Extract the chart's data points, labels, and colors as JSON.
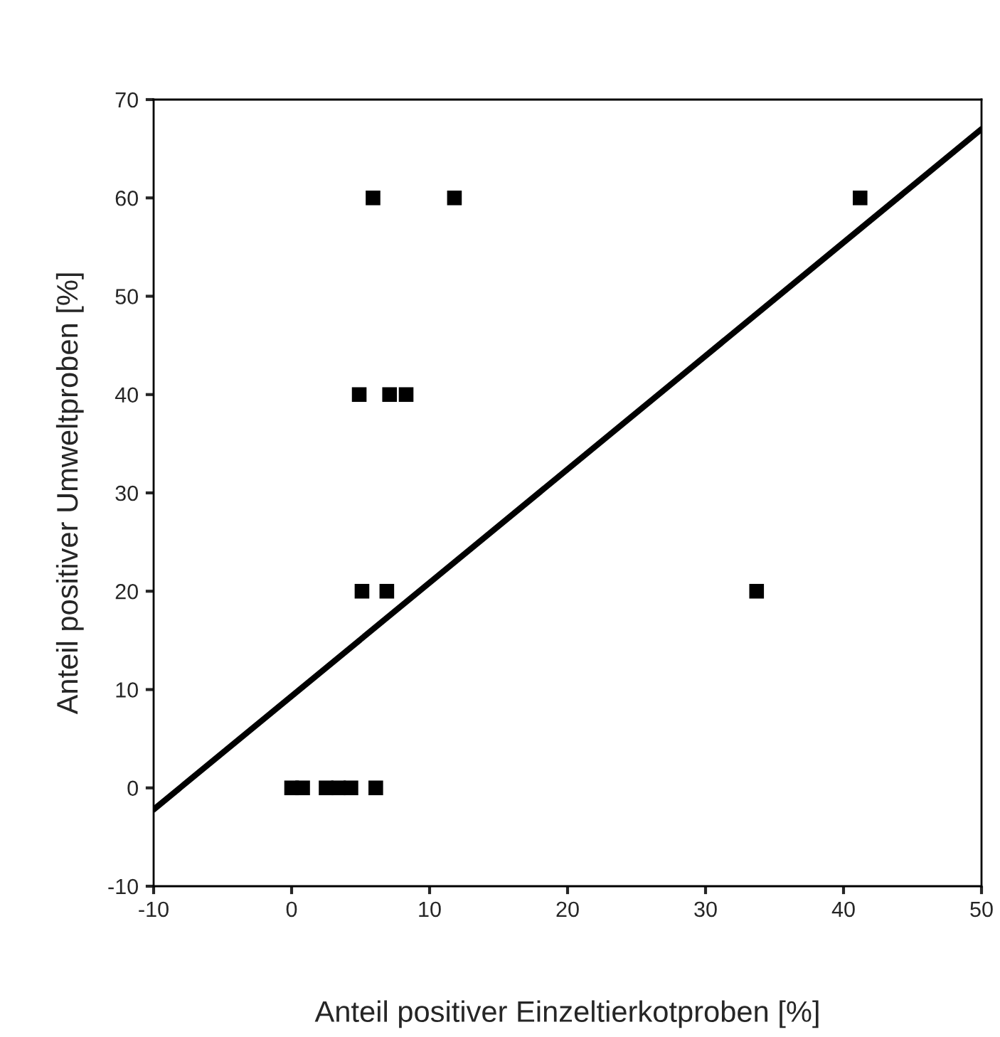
{
  "chart_data": {
    "type": "scatter",
    "xlabel": "Anteil positiver Einzeltierkotproben [%]",
    "ylabel": "Anteil positiver Umweltproben [%]",
    "series": [
      {
        "color": "#000000",
        "marker": "square",
        "x": [
          0,
          0.8,
          2.5,
          3.4,
          4.3,
          6.1,
          5.1,
          6.9,
          33.7,
          4.9,
          7.1,
          8.3,
          5.9,
          11.8,
          41.2
        ],
        "values": [
          0,
          0,
          0,
          0,
          0,
          0,
          20,
          20,
          20,
          40,
          40,
          40,
          60,
          60,
          60
        ]
      },
      {
        "type": "line",
        "color": "#000000",
        "line_style": "solid",
        "x": [
          -10,
          50
        ],
        "values": [
          -2.2,
          67
        ]
      }
    ],
    "xlim": [
      -10,
      50
    ],
    "ylim": [
      -10,
      70
    ],
    "xticks": [
      -10,
      0,
      10,
      20,
      30,
      40,
      50
    ],
    "yticks": [
      -10,
      0,
      10,
      20,
      30,
      40,
      50,
      60,
      70
    ],
    "grid": false,
    "legend": false
  }
}
